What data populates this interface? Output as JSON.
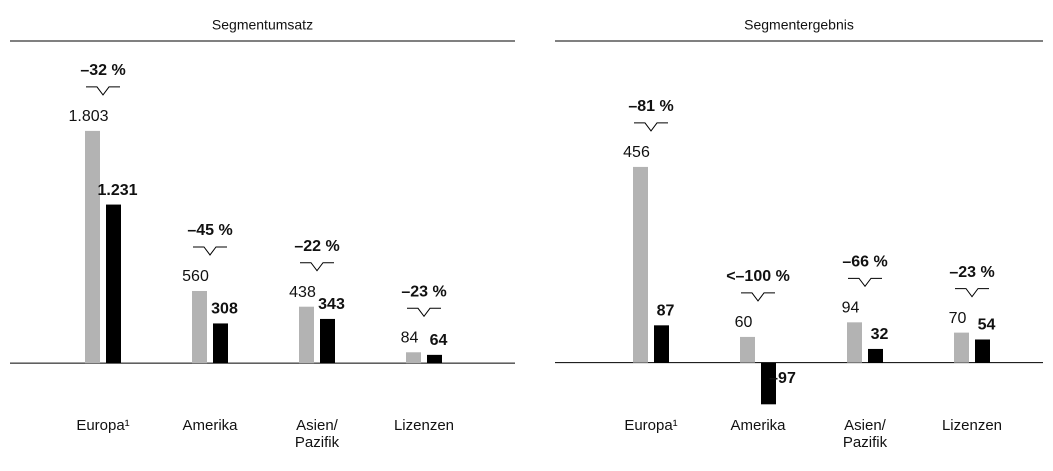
{
  "chart_data": [
    {
      "type": "bar",
      "title": "Segmentumsatz",
      "categories": [
        "Europa¹",
        "Amerika",
        "Asien/ Pazifik",
        "Lizenzen"
      ],
      "series": [
        {
          "color": "#b3b3b3",
          "values": [
            1803,
            560,
            438,
            84
          ],
          "value_labels": [
            "1.803",
            "560",
            "438",
            "84"
          ]
        },
        {
          "color": "#000000",
          "values": [
            1231,
            308,
            343,
            64
          ],
          "value_labels": [
            "1.231",
            "308",
            "343",
            "64"
          ]
        }
      ],
      "changes": [
        "–32 %",
        "–45 %",
        "–22 %",
        "–23 %"
      ],
      "ylim": [
        -830,
        2470
      ]
    },
    {
      "type": "bar",
      "title": "Segmentergebnis",
      "categories": [
        "Europa¹",
        "Amerika",
        "Asien/ Pazifik",
        "Lizenzen"
      ],
      "series": [
        {
          "color": "#b3b3b3",
          "values": [
            456,
            60,
            94,
            70
          ]
        },
        {
          "color": "#000000",
          "values": [
            87,
            -97,
            32,
            54
          ],
          "value_labels": [
            "87",
            "–97",
            "32",
            "54"
          ]
        }
      ],
      "changes": [
        "–81 %",
        "<–100 %",
        "–66 %",
        "–23 %"
      ],
      "ylim": [
        -250,
        740
      ]
    }
  ]
}
